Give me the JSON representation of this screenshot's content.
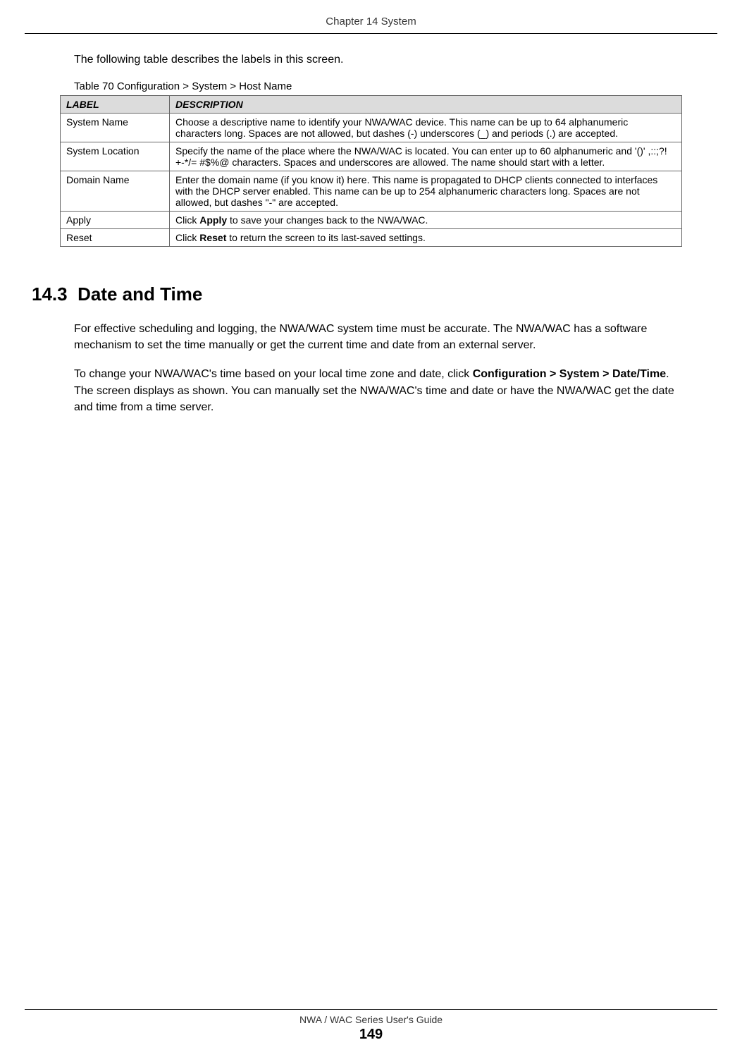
{
  "header": {
    "chapter": "Chapter 14 System"
  },
  "intro": "The following table describes the labels in this screen.",
  "table": {
    "caption": "Table 70   Configuration > System > Host Name",
    "columns": {
      "label": "LABEL",
      "description": "DESCRIPTION"
    },
    "rows": [
      {
        "label": "System Name",
        "description": "Choose a descriptive name to identify your NWA/WAC device. This name can be up to 64 alphanumeric characters long. Spaces are not allowed, but dashes (-) underscores (_) and periods (.) are accepted."
      },
      {
        "label": "System Location",
        "description": "Specify the name of the place where the NWA/WAC is located. You can enter up to 60 alphanumeric and '()' ,::;?! +-*/= #$%@ characters. Spaces and underscores are allowed. The name should start with a letter."
      },
      {
        "label": "Domain Name",
        "description": "Enter the domain name (if you know it) here. This name is propagated to DHCP clients connected to interfaces with the DHCP server enabled. This name can be up to 254 alphanumeric characters long. Spaces are not allowed, but dashes \"-\" are accepted."
      },
      {
        "label": "Apply",
        "description_prefix": "Click ",
        "description_bold": "Apply",
        "description_suffix": " to save your changes back to the NWA/WAC."
      },
      {
        "label": "Reset",
        "description_prefix": "Click ",
        "description_bold": "Reset",
        "description_suffix": " to return the screen to its last-saved settings."
      }
    ]
  },
  "section": {
    "number": "14.3",
    "title": "Date and Time",
    "para1": "For effective scheduling and logging, the NWA/WAC system time must be accurate. The NWA/WAC has a software mechanism to set the time manually or get the current time and date from an external server.",
    "para2_prefix": "To change your NWA/WAC's time based on your local time zone and date, click ",
    "para2_bold": "Configuration > System > Date/Time",
    "para2_suffix": ". The screen displays as shown. You can manually set the NWA/WAC's time and date or have the NWA/WAC get the date and time from a time server."
  },
  "footer": {
    "guide": "NWA / WAC Series User's Guide",
    "page": "149"
  },
  "styles": {
    "text_color": "#000000",
    "header_bg": "#dcdcdc",
    "border_color": "#666666",
    "page_bg": "#ffffff",
    "body_fontsize": 16,
    "table_fontsize": 14,
    "heading_fontsize": 26,
    "footer_fontsize": 14,
    "page_number_fontsize": 20
  }
}
